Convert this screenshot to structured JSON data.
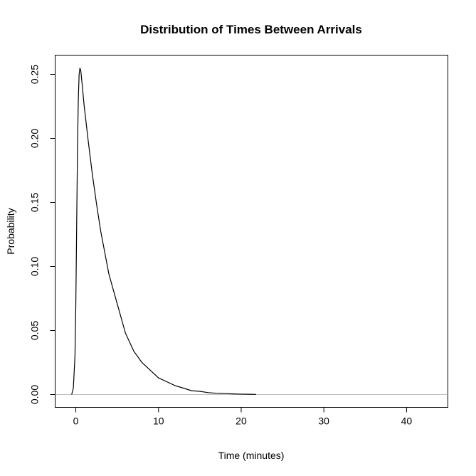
{
  "chart_data": {
    "type": "line",
    "title": "Distribution of Times Between Arrivals",
    "xlabel": "Time (minutes)",
    "ylabel": "Probability",
    "xlim": [
      -2.5,
      45
    ],
    "ylim": [
      -0.01,
      0.265
    ],
    "x_ticks": [
      0,
      10,
      20,
      30,
      40
    ],
    "x_tick_labels": [
      "0",
      "10",
      "20",
      "30",
      "40"
    ],
    "y_ticks": [
      0,
      0.05,
      0.1,
      0.15,
      0.2,
      0.25
    ],
    "y_tick_labels": [
      "0.00",
      "0.05",
      "0.10",
      "0.15",
      "0.20",
      "0.25"
    ],
    "grid": false,
    "reference_line": {
      "y": 0,
      "color": "#bebebe"
    },
    "series": [
      {
        "color": "#000000",
        "x": [
          -0.5,
          -0.3,
          -0.1,
          0.0,
          0.1,
          0.2,
          0.3,
          0.4,
          0.5,
          0.6,
          0.8,
          1.0,
          1.5,
          2.0,
          2.5,
          3.0,
          3.5,
          4.0,
          5.0,
          6.0,
          7.0,
          8.0,
          9.0,
          10.0,
          11.0,
          12.0,
          13.0,
          14.0,
          15.0,
          16.0,
          17.0,
          18.0,
          19.0,
          20.0,
          21.0,
          21.8
        ],
        "y": [
          0.0,
          0.005,
          0.03,
          0.07,
          0.13,
          0.19,
          0.23,
          0.25,
          0.255,
          0.253,
          0.24,
          0.226,
          0.198,
          0.172,
          0.149,
          0.128,
          0.111,
          0.094,
          0.071,
          0.048,
          0.034,
          0.025,
          0.019,
          0.013,
          0.01,
          0.007,
          0.005,
          0.003,
          0.0025,
          0.0015,
          0.001,
          0.0008,
          0.0005,
          0.0003,
          0.0002,
          0.0001
        ]
      }
    ]
  }
}
